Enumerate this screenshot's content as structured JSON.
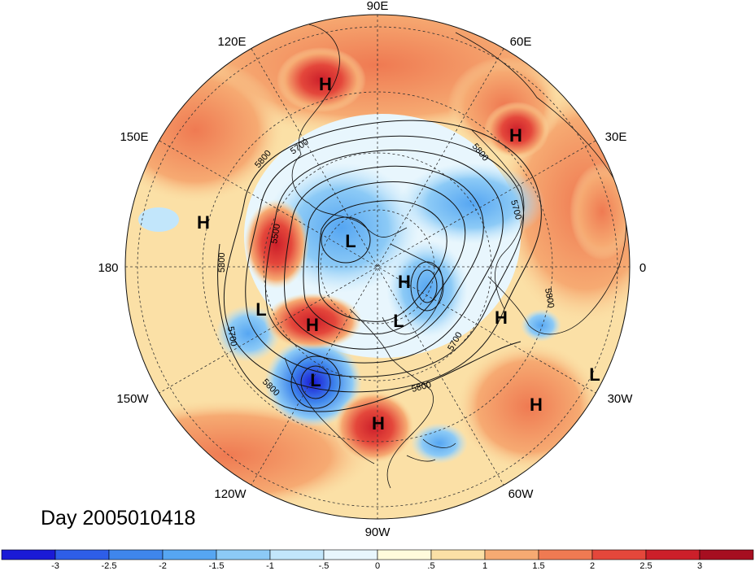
{
  "map": {
    "projection": "polar stereographic (north pole)",
    "longitude_labels": [
      "90E",
      "60E",
      "30E",
      "0",
      "30W",
      "60W",
      "90W",
      "120W",
      "150W",
      "180",
      "150E",
      "120E"
    ],
    "contour_labels": [
      "5800",
      "5700",
      "5500",
      "5800",
      "5700",
      "5800",
      "5700",
      "5800",
      "5800",
      "5700",
      "5800"
    ],
    "pressure_centers": [
      "H",
      "H",
      "H",
      "L",
      "H",
      "L",
      "L",
      "H",
      "L",
      "H",
      "H",
      "L",
      "H"
    ],
    "footer_label": "Day 2005010418"
  },
  "colorbar": {
    "ticks": [
      "-3",
      "-2.5",
      "-2",
      "-1.5",
      "-1",
      "-.5",
      "0",
      ".5",
      "1",
      "1.5",
      "2",
      "2.5",
      "3"
    ],
    "colors": [
      "#1a1ad6",
      "#2e5ee8",
      "#3f86ec",
      "#56a6f2",
      "#8ccaf6",
      "#c2e6fb",
      "#e8f6fd",
      "#fffbdc",
      "#fbe0a6",
      "#f6aa72",
      "#ef7a52",
      "#e4473b",
      "#cc1f2a",
      "#a60e20"
    ]
  }
}
